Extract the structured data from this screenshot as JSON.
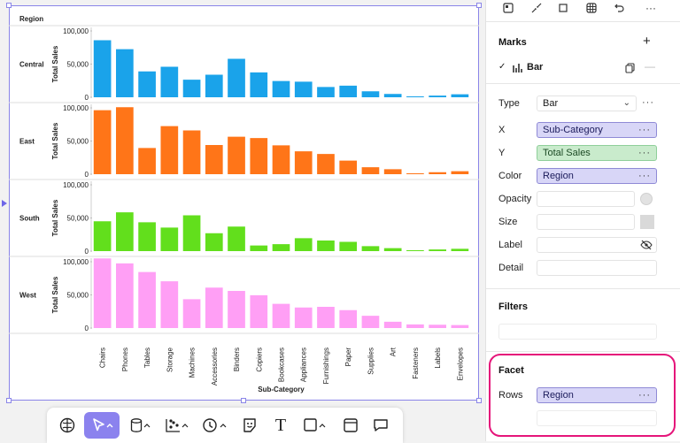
{
  "canvas": {
    "facet_header": "Region",
    "chart_data": {
      "type": "bar",
      "facet_field": "Region",
      "facets": [
        "Central",
        "East",
        "South",
        "West"
      ],
      "categories": [
        "Chairs",
        "Phones",
        "Tables",
        "Storage",
        "Machines",
        "Accessories",
        "Binders",
        "Copiers",
        "Bookcases",
        "Appliances",
        "Furnishings",
        "Paper",
        "Supplies",
        "Art",
        "Fasteners",
        "Labels",
        "Envelopes"
      ],
      "series": [
        {
          "name": "Central",
          "color": "#1aa3ea",
          "values": [
            86000,
            72500,
            39000,
            46000,
            26500,
            34000,
            58000,
            37500,
            24500,
            23500,
            15500,
            17500,
            9000,
            5000,
            900,
            2500,
            4500
          ]
        },
        {
          "name": "East",
          "color": "#ff7518",
          "values": [
            96500,
            101000,
            39500,
            72500,
            66000,
            44000,
            56500,
            54500,
            43500,
            34500,
            30500,
            20500,
            10500,
            7500,
            1000,
            3000,
            4500
          ]
        },
        {
          "name": "South",
          "color": "#62df1c",
          "values": [
            45000,
            58500,
            43500,
            35500,
            54000,
            27000,
            37000,
            8500,
            10500,
            19500,
            16000,
            14000,
            7500,
            4500,
            900,
            2500,
            3500
          ]
        },
        {
          "name": "West",
          "color": "#ff9ff5",
          "values": [
            105000,
            97500,
            84500,
            70500,
            43500,
            61000,
            56000,
            49500,
            36500,
            31000,
            32000,
            27000,
            18500,
            9500,
            5500,
            5000,
            4500
          ]
        }
      ],
      "xlabel": "Sub-Category",
      "ylabel": "Total Sales",
      "yticks": [
        "0",
        "50,000",
        "100,000"
      ],
      "ylim": [
        0,
        100000
      ]
    }
  },
  "toolbar": {
    "tools": [
      "ai-tool",
      "pointer-tool",
      "database-tool",
      "chart-tool",
      "history-tool",
      "sticker-tool",
      "text-tool",
      "shape-tool",
      "frame-tool",
      "comment-tool"
    ],
    "text_tool_glyph": "T"
  },
  "panel": {
    "top_icons": [
      "layout-icon",
      "collapse-icon",
      "fit-icon",
      "grid-icon",
      "undo-icon",
      "more-icon"
    ],
    "marks": {
      "title": "Marks",
      "add_glyph": "+",
      "mark_name": "Bar",
      "type_label": "Type",
      "type_value": "Bar",
      "encodings": [
        {
          "label": "X",
          "value": "Sub-Category",
          "style": "purple"
        },
        {
          "label": "Y",
          "value": "Total Sales",
          "style": "green"
        },
        {
          "label": "Color",
          "value": "Region",
          "style": "purple"
        },
        {
          "label": "Opacity",
          "value": "",
          "style": "empty"
        },
        {
          "label": "Size",
          "value": "",
          "style": "empty"
        },
        {
          "label": "Label",
          "value": "",
          "style": "empty"
        },
        {
          "label": "Detail",
          "value": "",
          "style": "empty"
        }
      ]
    },
    "filters": {
      "title": "Filters"
    },
    "facet": {
      "title": "Facet",
      "rows_label": "Rows",
      "rows_value": "Region",
      "highlight_color": "#e5157a"
    },
    "more_glyph": "···"
  }
}
